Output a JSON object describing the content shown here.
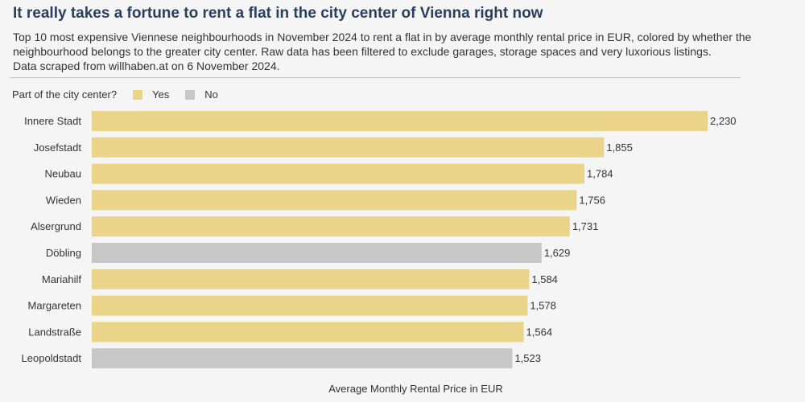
{
  "title": "It really takes a fortune to rent a flat in the city center of Vienna right now",
  "subtitle_lines": [
    "Top 10 most expensive Viennese neighbourhoods in November 2024 to rent a flat in by average monthly rental price in EUR, colored by whether the",
    "neighbourhood belongs to the greater city center. Raw data has been filtered to exclude garages, storage spaces and very luxorious listings.",
    "Data scraped from willhaben.at on 6 November 2024."
  ],
  "legend": {
    "title": "Part of the city center?",
    "items": [
      {
        "label": "Yes",
        "color": "#e9d48a"
      },
      {
        "label": "No",
        "color": "#c7c7c7"
      }
    ]
  },
  "chart_data": {
    "type": "bar",
    "orientation": "horizontal",
    "categories": [
      "Innere Stadt",
      "Josefstadt",
      "Neubau",
      "Wieden",
      "Alsergrund",
      "Döbling",
      "Mariahilf",
      "Margareten",
      "Landstraße",
      "Leopoldstadt"
    ],
    "values": [
      2230,
      1855,
      1784,
      1756,
      1731,
      1629,
      1584,
      1578,
      1564,
      1523
    ],
    "value_labels": [
      "2,230",
      "1,855",
      "1,784",
      "1,756",
      "1,731",
      "1,629",
      "1,584",
      "1,578",
      "1,564",
      "1,523"
    ],
    "city_center": [
      "Yes",
      "Yes",
      "Yes",
      "Yes",
      "Yes",
      "No",
      "Yes",
      "Yes",
      "Yes",
      "No"
    ],
    "xlabel": "Average Monthly Rental Price in EUR",
    "xlim": [
      0,
      2230
    ],
    "grid": false,
    "legend_position": "top-left"
  }
}
